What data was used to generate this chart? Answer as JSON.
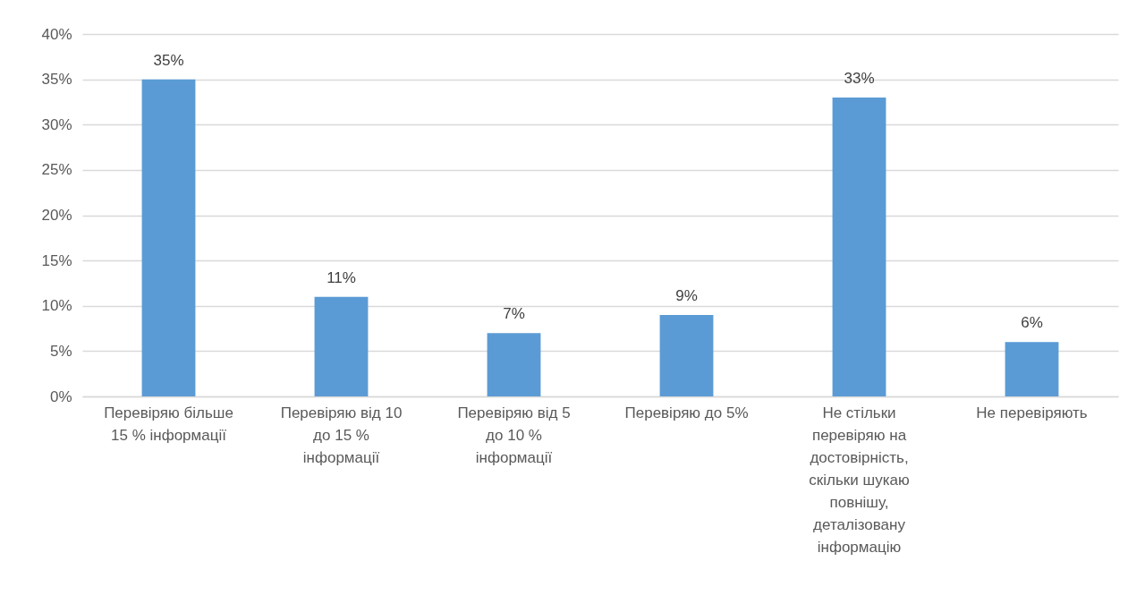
{
  "chart_data": {
    "type": "bar",
    "categories": [
      "Перевіряю більше 15 % інформації",
      "Перевіряю від 10 до 15 % інформації",
      "Перевіряю від 5 до 10 % інформації",
      "Перевіряю до 5%",
      "Не стільки перевіряю на достовірність, скільки шукаю повнішу, деталізовану інформацію",
      "Не перевіряють"
    ],
    "values": [
      35,
      11,
      7,
      9,
      33,
      6
    ],
    "value_labels": [
      "35%",
      "11%",
      "7%",
      "9%",
      "33%",
      "6%"
    ],
    "color": "#5b9bd5",
    "ylim": [
      0,
      40
    ],
    "yticks": [
      {
        "value": 0,
        "label": "0%"
      },
      {
        "value": 5,
        "label": "5%"
      },
      {
        "value": 10,
        "label": "10%"
      },
      {
        "value": 15,
        "label": "15%"
      },
      {
        "value": 20,
        "label": "20%"
      },
      {
        "value": 25,
        "label": "25%"
      },
      {
        "value": 30,
        "label": "30%"
      },
      {
        "value": 35,
        "label": "35%"
      },
      {
        "value": 40,
        "label": "40%"
      }
    ],
    "grid": "y"
  }
}
